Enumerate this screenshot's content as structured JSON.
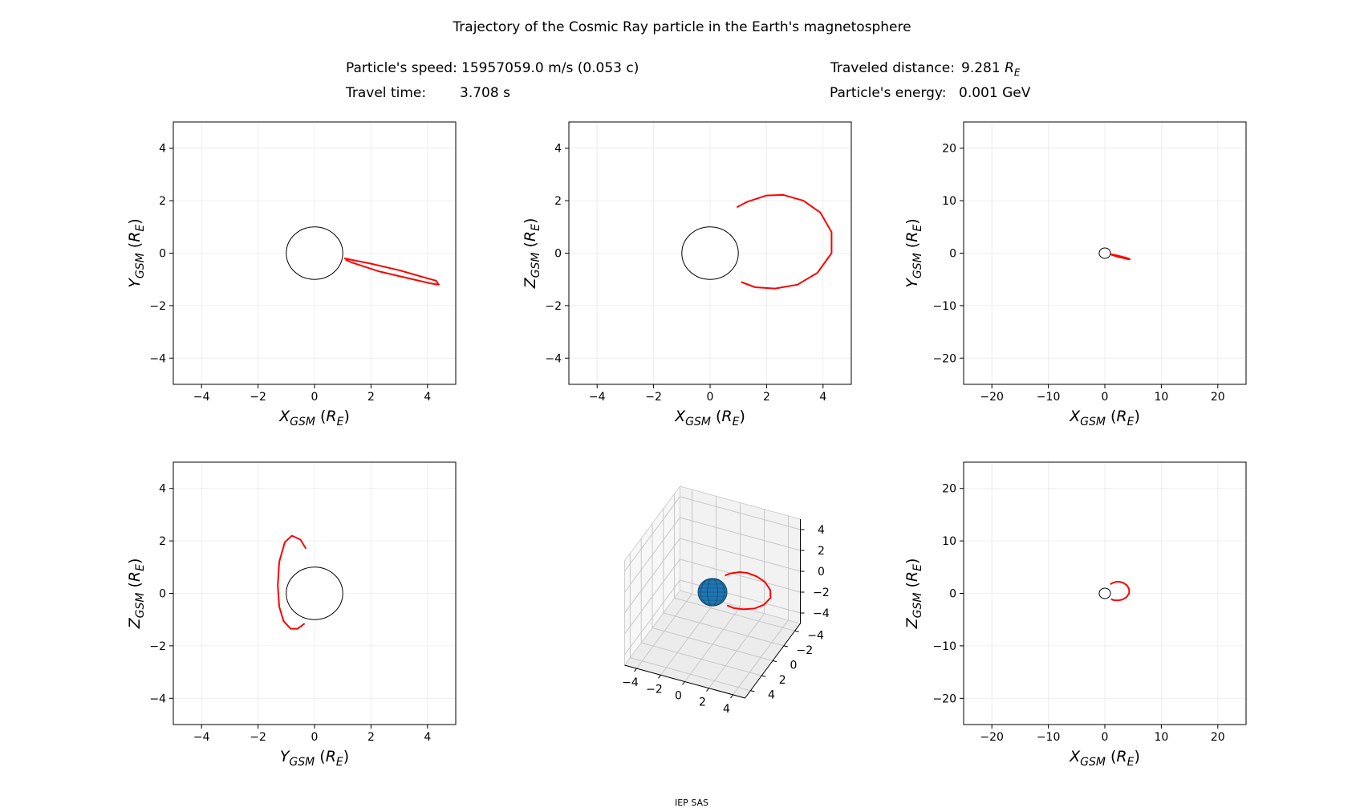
{
  "header": {
    "title": "Trajectory of the Cosmic Ray particle in the Earth's magnetosphere",
    "speed_label": "Particle's speed:",
    "speed_value": "15957059.0 m/s (0.053 c)",
    "time_label": "Travel time:",
    "time_value": "3.708 s",
    "distance_label": "Traveled distance:",
    "distance_value": "9.281",
    "distance_unit_main": "R",
    "distance_unit_sub": "E",
    "energy_label": "Particle's energy:",
    "energy_value": "0.001 GeV"
  },
  "footer": {
    "text": "IEP SAS"
  },
  "colors": {
    "trajectory": "#ff0000",
    "earth": "#1f77b4",
    "grid": "#b0b0b0"
  },
  "chart_data": [
    {
      "id": "xy-zoom",
      "type": "line",
      "xlabel": "X_GSM (R_E)",
      "ylabel": "Y_GSM (R_E)",
      "xlim": [
        -5,
        5
      ],
      "ylim": [
        -5,
        5
      ],
      "xticks": [
        -4,
        -2,
        0,
        2,
        4
      ],
      "yticks": [
        -4,
        -2,
        0,
        2,
        4
      ],
      "grid": true,
      "earth": {
        "center": [
          0,
          0
        ],
        "radius": 1
      },
      "series": [
        {
          "name": "trajectory",
          "x": [
            1.05,
            2.0,
            3.0,
            3.8,
            4.3,
            4.4,
            4.1,
            3.3,
            2.3,
            1.3,
            1.1
          ],
          "y": [
            -0.2,
            -0.4,
            -0.65,
            -0.9,
            -1.05,
            -1.2,
            -1.15,
            -0.95,
            -0.7,
            -0.35,
            -0.25
          ]
        }
      ]
    },
    {
      "id": "xz-zoom",
      "type": "line",
      "xlabel": "X_GSM (R_E)",
      "ylabel": "Z_GSM (R_E)",
      "xlim": [
        -5,
        5
      ],
      "ylim": [
        -5,
        5
      ],
      "xticks": [
        -4,
        -2,
        0,
        2,
        4
      ],
      "yticks": [
        -4,
        -2,
        0,
        2,
        4
      ],
      "grid": true,
      "earth": {
        "center": [
          0,
          0
        ],
        "radius": 1
      },
      "series": [
        {
          "name": "trajectory",
          "x": [
            0.95,
            1.3,
            2.0,
            2.6,
            3.3,
            3.9,
            4.3,
            4.3,
            3.8,
            3.1,
            2.3,
            1.6,
            1.1
          ],
          "y": [
            1.75,
            1.95,
            2.2,
            2.22,
            2.0,
            1.55,
            0.8,
            0.0,
            -0.75,
            -1.2,
            -1.35,
            -1.3,
            -1.1
          ]
        }
      ]
    },
    {
      "id": "xy-wide",
      "type": "line",
      "xlabel": "X_GSM (R_E)",
      "ylabel": "Y_GSM (R_E)",
      "xlim": [
        -25,
        25
      ],
      "ylim": [
        -25,
        25
      ],
      "xticks": [
        -20,
        -10,
        0,
        10,
        20
      ],
      "yticks": [
        -20,
        -10,
        0,
        10,
        20
      ],
      "grid": true,
      "earth": {
        "center": [
          0,
          0
        ],
        "radius": 1
      },
      "series": [
        {
          "name": "trajectory",
          "x": [
            1.05,
            2.0,
            3.0,
            3.8,
            4.3,
            4.4,
            4.1,
            3.3,
            2.3,
            1.3,
            1.1
          ],
          "y": [
            -0.2,
            -0.4,
            -0.65,
            -0.9,
            -1.05,
            -1.2,
            -1.15,
            -0.95,
            -0.7,
            -0.35,
            -0.25
          ]
        }
      ]
    },
    {
      "id": "yz-zoom",
      "type": "line",
      "xlabel": "Y_GSM (R_E)",
      "ylabel": "Z_GSM (R_E)",
      "xlim": [
        -5,
        5
      ],
      "ylim": [
        -5,
        5
      ],
      "xticks": [
        -4,
        -2,
        0,
        2,
        4
      ],
      "yticks": [
        -4,
        -2,
        0,
        2,
        4
      ],
      "grid": true,
      "earth": {
        "center": [
          0,
          0
        ],
        "radius": 1
      },
      "series": [
        {
          "name": "trajectory",
          "x": [
            -0.3,
            -0.5,
            -0.8,
            -1.05,
            -1.25,
            -1.3,
            -1.25,
            -1.1,
            -0.85,
            -0.6,
            -0.35
          ],
          "y": [
            1.7,
            2.05,
            2.2,
            1.95,
            1.2,
            0.3,
            -0.5,
            -1.05,
            -1.35,
            -1.35,
            -1.15
          ]
        }
      ]
    },
    {
      "id": "xyz-3d",
      "type": "line3d",
      "xticks": [
        -4,
        -2,
        0,
        2,
        4
      ],
      "yticks": [
        -4,
        -2,
        0,
        2,
        4
      ],
      "zticks": [
        -4,
        -2,
        0,
        2,
        4
      ],
      "xlim": [
        -5,
        5
      ],
      "ylim": [
        -5,
        5
      ],
      "zlim": [
        -5,
        5
      ],
      "earth": {
        "center": [
          0,
          0,
          0
        ],
        "radius": 1
      },
      "series": [
        {
          "name": "trajectory",
          "x": [
            0.95,
            1.3,
            2.0,
            2.6,
            3.3,
            3.9,
            4.3,
            4.3,
            3.8,
            3.1,
            2.3,
            1.6,
            1.1
          ],
          "y": [
            -0.2,
            -0.35,
            -0.5,
            -0.62,
            -0.78,
            -0.95,
            -1.08,
            -1.15,
            -1.05,
            -0.85,
            -0.6,
            -0.38,
            -0.25
          ],
          "z": [
            1.75,
            1.95,
            2.2,
            2.22,
            2.0,
            1.55,
            0.8,
            0.0,
            -0.75,
            -1.2,
            -1.35,
            -1.3,
            -1.1
          ]
        }
      ]
    },
    {
      "id": "xz-wide",
      "type": "line",
      "xlabel": "X_GSM (R_E)",
      "ylabel": "Z_GSM (R_E)",
      "xlim": [
        -25,
        25
      ],
      "ylim": [
        -25,
        25
      ],
      "xticks": [
        -20,
        -10,
        0,
        10,
        20
      ],
      "yticks": [
        -20,
        -10,
        0,
        10,
        20
      ],
      "grid": true,
      "earth": {
        "center": [
          0,
          0
        ],
        "radius": 1
      },
      "series": [
        {
          "name": "trajectory",
          "x": [
            0.95,
            1.3,
            2.0,
            2.6,
            3.3,
            3.9,
            4.3,
            4.3,
            3.8,
            3.1,
            2.3,
            1.6,
            1.1
          ],
          "y": [
            1.75,
            1.95,
            2.2,
            2.22,
            2.0,
            1.55,
            0.8,
            0.0,
            -0.75,
            -1.2,
            -1.35,
            -1.3,
            -1.1
          ]
        }
      ]
    }
  ]
}
